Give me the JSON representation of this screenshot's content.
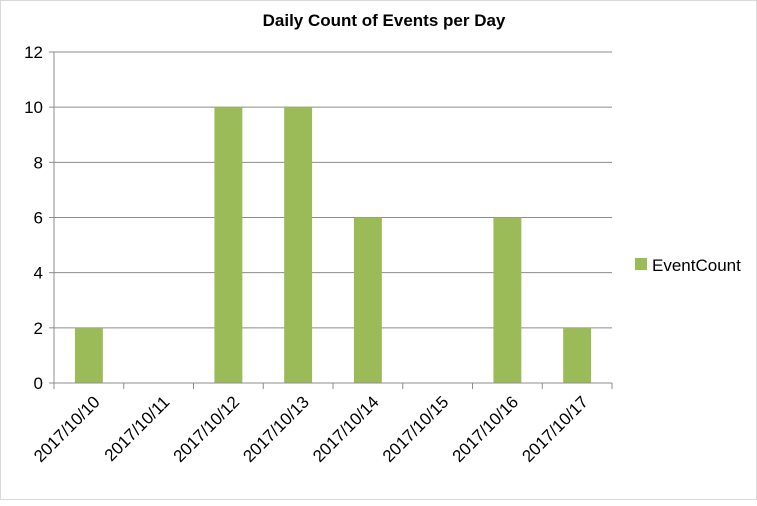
{
  "chart_data": {
    "type": "bar",
    "title": "Daily Count of Events per Day",
    "xlabel": "",
    "ylabel": "",
    "categories": [
      "2017/10/10",
      "2017/10/11",
      "2017/10/12",
      "2017/10/13",
      "2017/10/14",
      "2017/10/15",
      "2017/10/16",
      "2017/10/17"
    ],
    "series": [
      {
        "name": "EventCount",
        "values": [
          2,
          0,
          10,
          10,
          6,
          0,
          6,
          2
        ],
        "color": "#9bbb59"
      }
    ],
    "ylim": [
      0,
      12
    ],
    "yticks": [
      0,
      2,
      4,
      6,
      8,
      10,
      12
    ],
    "grid": true,
    "legend": "right"
  }
}
